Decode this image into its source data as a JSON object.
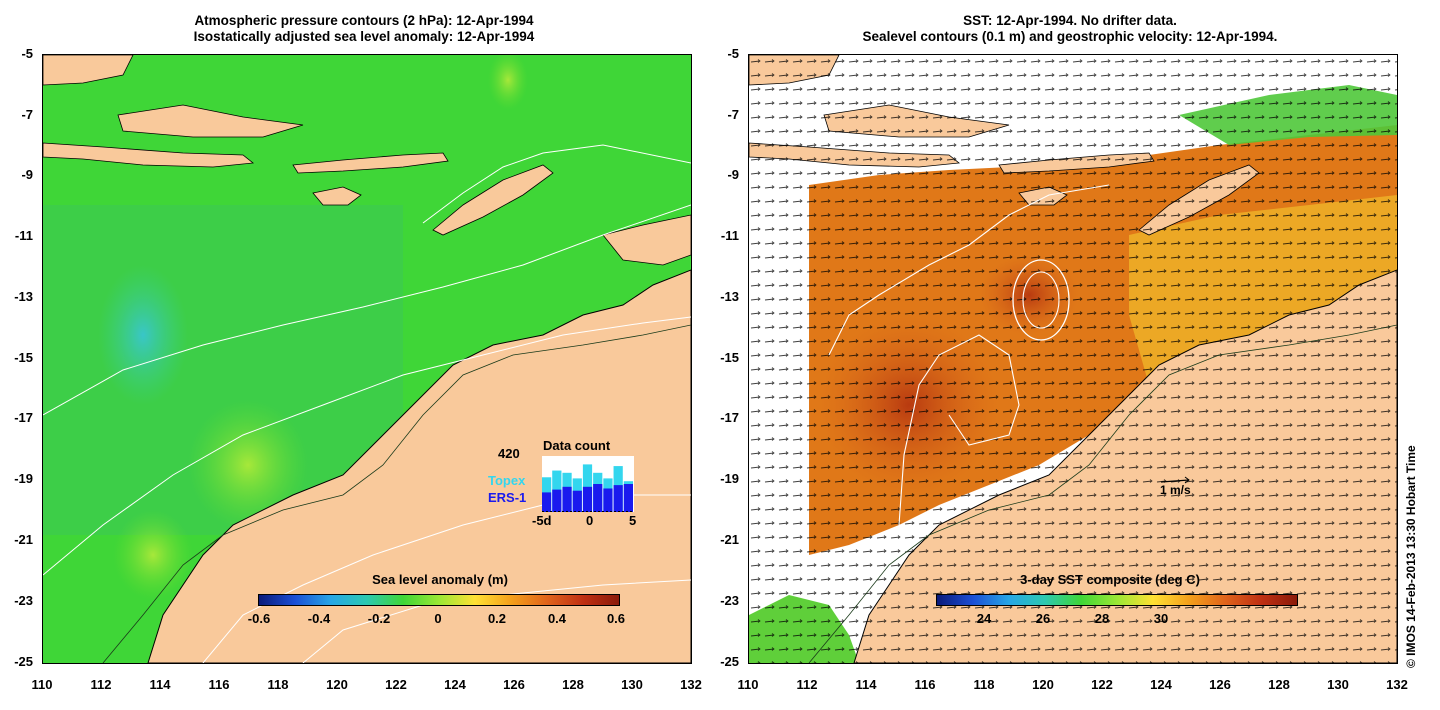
{
  "left_panel": {
    "title_line1": "Atmospheric pressure contours (2 hPa): 12-Apr-1994",
    "title_line2": "Isostatically adjusted sea level anomaly: 12-Apr-1994",
    "y_ticks": [
      "-5",
      "-7",
      "-9",
      "-11",
      "-13",
      "-15",
      "-17",
      "-19",
      "-21",
      "-23",
      "-25"
    ],
    "x_ticks": [
      "110",
      "112",
      "114",
      "116",
      "118",
      "120",
      "122",
      "124",
      "126",
      "128",
      "130",
      "132"
    ],
    "colorbar": {
      "title": "Sea level anomaly (m)",
      "ticks": [
        "-0.6",
        "-0.4",
        "-0.2",
        "0",
        "0.2",
        "0.4",
        "0.6"
      ]
    },
    "data_count": {
      "label": "Data count",
      "max_value": "420",
      "topex_label": "Topex",
      "ers_label": "ERS-1",
      "x_ticks": [
        "-5d",
        "0",
        "5"
      ],
      "topex_color": "#33d6ee",
      "ers_color": "#1a1aee",
      "chart_data": {
        "type": "bar",
        "series": [
          {
            "name": "Topex",
            "values": [
              0.62,
              0.74,
              0.7,
              0.6,
              0.85,
              0.7,
              0.6,
              0.82,
              0.55
            ]
          },
          {
            "name": "ERS-1",
            "values": [
              0.35,
              0.4,
              0.45,
              0.38,
              0.45,
              0.5,
              0.42,
              0.48,
              0.5
            ]
          }
        ]
      }
    }
  },
  "right_panel": {
    "title_line1": "SST: 12-Apr-1994. No drifter data.",
    "title_line2": "Sealevel contours (0.1 m) and geostrophic velocity: 12-Apr-1994.",
    "y_ticks": [
      "-5",
      "-7",
      "-9",
      "-11",
      "-13",
      "-15",
      "-17",
      "-19",
      "-21",
      "-23",
      "-25"
    ],
    "x_ticks": [
      "110",
      "112",
      "114",
      "116",
      "118",
      "120",
      "122",
      "124",
      "126",
      "128",
      "130",
      "132"
    ],
    "velocity_scale_label": "1 m/s",
    "colorbar": {
      "title": "3-day SST composite (deg C)",
      "ticks": [
        "24",
        "26",
        "28",
        "30"
      ]
    }
  },
  "copyright": "© IMOS 14-Feb-2013 13:30 Hobart Time",
  "colors": {
    "land": "#f9c99b",
    "ocean_green": "#3fd637",
    "sst_orange": "#e07818",
    "sst_red": "#b83a10"
  }
}
